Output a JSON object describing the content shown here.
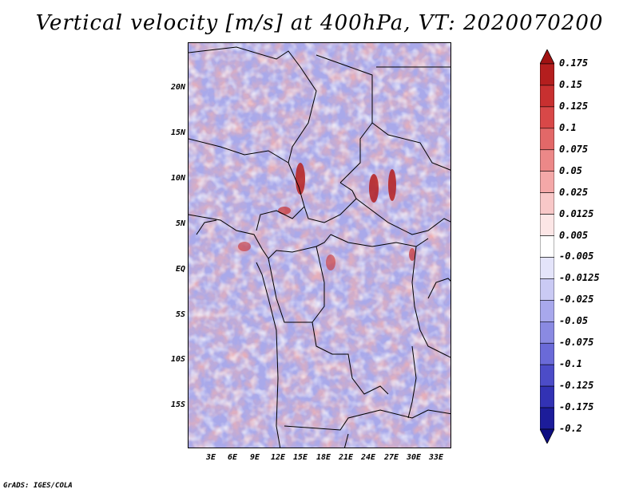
{
  "title": "Vertical velocity [m/s] at 400hPa, VT: 2020070200",
  "credit": "GrADS: IGES/COLA",
  "lat_labels": [
    "20N",
    "15N",
    "10N",
    "5N",
    "EQ",
    "5S",
    "10S",
    "15S"
  ],
  "lon_labels": [
    "3E",
    "6E",
    "9E",
    "12E",
    "15E",
    "18E",
    "21E",
    "24E",
    "27E",
    "30E",
    "33E"
  ],
  "colorbar": {
    "labels": [
      "0.175",
      "0.15",
      "0.125",
      "0.1",
      "0.075",
      "0.05",
      "0.025",
      "0.0125",
      "0.005",
      "-0.005",
      "-0.0125",
      "-0.025",
      "-0.05",
      "-0.075",
      "-0.1",
      "-0.125",
      "-0.175",
      "-0.2"
    ],
    "colors": [
      "#a01212",
      "#b41e1e",
      "#c83030",
      "#d84848",
      "#e26868",
      "#ec8888",
      "#f4a8a8",
      "#f8c8c8",
      "#fce6e6",
      "#ffffff",
      "#e4e4fa",
      "#cacaf4",
      "#a8a8ec",
      "#8a8ae2",
      "#6a6ad8",
      "#4c4cc8",
      "#3232b4",
      "#1c1c9a",
      "#0e0e82"
    ]
  },
  "colors": {
    "positive": "#d84848",
    "negative": "#6a6ad8"
  }
}
